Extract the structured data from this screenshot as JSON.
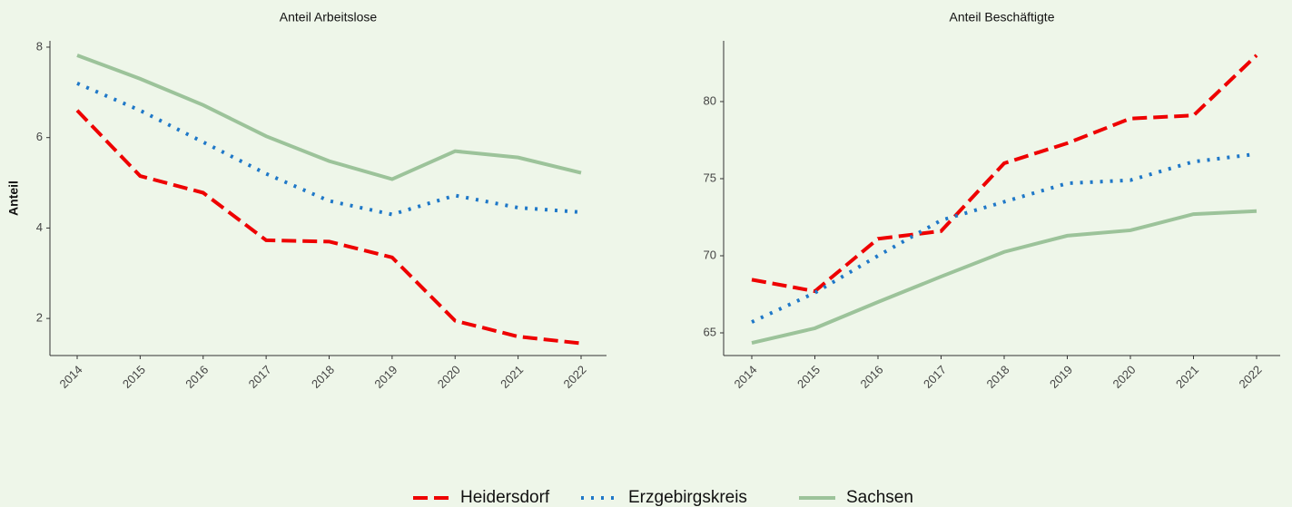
{
  "chart_data": [
    {
      "type": "line",
      "title": "Anteil Arbeitslose",
      "y_label": "Anteil",
      "categories": [
        "2014",
        "2015",
        "2016",
        "2017",
        "2018",
        "2019",
        "2020",
        "2021",
        "2022"
      ],
      "ylim": [
        1.18,
        8.14
      ],
      "yticks": [
        2,
        4,
        6,
        8
      ],
      "series": [
        {
          "name": "Heidersdorf",
          "color": "#ee0000",
          "dash": "dashed",
          "values": [
            6.6,
            5.15,
            4.78,
            3.73,
            3.7,
            3.35,
            1.95,
            1.6,
            1.45
          ]
        },
        {
          "name": "Erzgebirgskreis",
          "color": "#1f78c8",
          "dash": "dotted",
          "values": [
            7.2,
            6.6,
            5.9,
            5.2,
            4.6,
            4.3,
            4.72,
            4.45,
            4.35
          ]
        },
        {
          "name": "Sachsen",
          "color": "#9cc39a",
          "dash": "solid",
          "values": [
            7.82,
            7.3,
            6.72,
            6.03,
            5.48,
            5.08,
            5.7,
            5.56,
            5.22
          ]
        }
      ]
    },
    {
      "type": "line",
      "title": "Anteil Beschäftigte",
      "categories": [
        "2014",
        "2015",
        "2016",
        "2017",
        "2018",
        "2019",
        "2020",
        "2021",
        "2022"
      ],
      "ylim": [
        63.53,
        83.94
      ],
      "yticks": [
        65,
        70,
        75,
        80
      ],
      "series": [
        {
          "name": "Heidersdorf",
          "color": "#ee0000",
          "dash": "dashed",
          "values": [
            68.45,
            67.7,
            71.1,
            71.6,
            76.0,
            77.3,
            78.9,
            79.1,
            83.0
          ]
        },
        {
          "name": "Erzgebirgskreis",
          "color": "#1f78c8",
          "dash": "dotted",
          "values": [
            65.7,
            67.6,
            70.0,
            72.3,
            73.5,
            74.7,
            74.9,
            76.1,
            76.6
          ]
        },
        {
          "name": "Sachsen",
          "color": "#9cc39a",
          "dash": "solid",
          "values": [
            64.35,
            65.3,
            67.0,
            68.65,
            70.25,
            71.3,
            71.65,
            72.7,
            72.9
          ]
        }
      ]
    }
  ]
}
